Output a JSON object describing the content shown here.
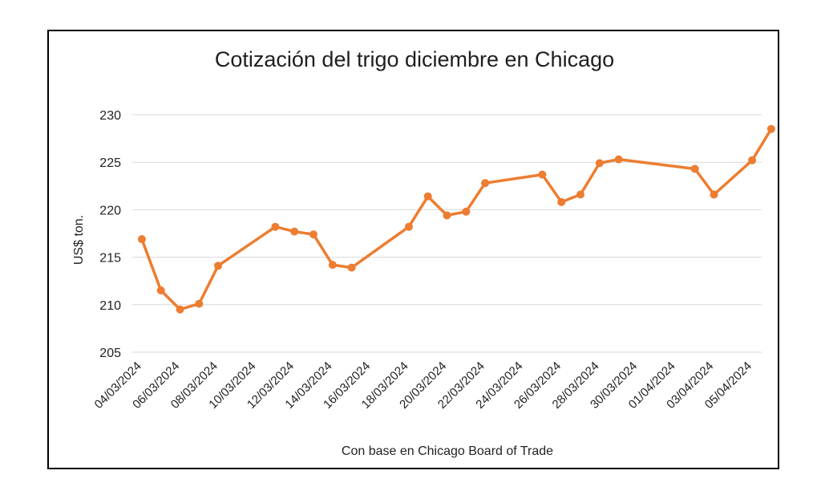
{
  "chart_data": {
    "type": "line",
    "title": "Cotización del trigo diciembre en Chicago",
    "ylabel": "US$ ton.",
    "xlabel": "Con base en Chicago Board of Trade",
    "ylim": [
      205,
      230
    ],
    "yticks": [
      205,
      210,
      215,
      220,
      225,
      230
    ],
    "grid": true,
    "x_tick_labels": [
      "04/03/2024",
      "06/03/2024",
      "08/03/2024",
      "10/03/2024",
      "12/03/2024",
      "14/03/2024",
      "16/03/2024",
      "18/03/2024",
      "20/03/2024",
      "22/03/2024",
      "24/03/2024",
      "26/03/2024",
      "28/03/2024",
      "30/03/2024",
      "01/04/2024",
      "03/04/2024",
      "05/04/2024"
    ],
    "x": [
      "04/03/2024",
      "05/03/2024",
      "06/03/2024",
      "07/03/2024",
      "08/03/2024",
      "11/03/2024",
      "12/03/2024",
      "13/03/2024",
      "14/03/2024",
      "15/03/2024",
      "18/03/2024",
      "19/03/2024",
      "20/03/2024",
      "21/03/2024",
      "22/03/2024",
      "25/03/2024",
      "26/03/2024",
      "27/03/2024",
      "28/03/2024",
      "29/03/2024",
      "02/04/2024",
      "03/04/2024",
      "05/04/2024",
      "06/04/2024"
    ],
    "series": [
      {
        "values": [
          216.9,
          211.5,
          209.5,
          210.1,
          214.1,
          218.2,
          217.7,
          217.4,
          214.2,
          213.9,
          218.2,
          221.4,
          219.4,
          219.8,
          222.8,
          223.7,
          220.8,
          221.6,
          224.9,
          225.3,
          224.3,
          221.6,
          225.2,
          228.5
        ],
        "color": "#ED7D31"
      }
    ]
  }
}
